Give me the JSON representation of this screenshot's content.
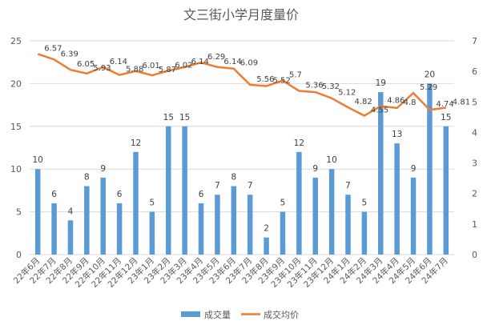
{
  "chart_data": {
    "type": "bar",
    "title": "文三街小学月度量价",
    "categories": [
      "22年6月",
      "22年7月",
      "22年8月",
      "22年9月",
      "22年10月",
      "22年11月",
      "22年12月",
      "23年1月",
      "23年2月",
      "23年3月",
      "23年4月",
      "23年5月",
      "23年6月",
      "23年7月",
      "23年8月",
      "23年9月",
      "23年10月",
      "23年11月",
      "23年12月",
      "24年1月",
      "24年2月",
      "24年3月",
      "24年4月",
      "24年5月",
      "24年6月",
      "24年7月"
    ],
    "series": [
      {
        "name": "成交量",
        "type": "bar",
        "axis": "left",
        "color": "#5B9BD5",
        "values": [
          10,
          6,
          4,
          8,
          9,
          6,
          12,
          5,
          15,
          15,
          6,
          7,
          8,
          7,
          2,
          5,
          12,
          9,
          10,
          7,
          5,
          19,
          13,
          9,
          20,
          15
        ]
      },
      {
        "name": "成交均价",
        "type": "line",
        "axis": "right",
        "color": "#ED7D31",
        "values": [
          6.57,
          6.39,
          6.05,
          5.93,
          6.14,
          5.88,
          6.01,
          5.87,
          6.02,
          6.14,
          6.29,
          6.14,
          6.09,
          5.56,
          5.52,
          5.7,
          5.36,
          5.32,
          5.12,
          4.82,
          4.55,
          4.86,
          4.8,
          5.29,
          4.74,
          4.81
        ]
      }
    ],
    "y_left": {
      "min": 0,
      "max": 25,
      "ticks": [
        0,
        5,
        10,
        15,
        20,
        25
      ]
    },
    "y_right": {
      "min": 0,
      "max": 7,
      "ticks": [
        0,
        1,
        2,
        3,
        4,
        5,
        6,
        7
      ]
    },
    "legend_position": "bottom",
    "grid": true
  }
}
